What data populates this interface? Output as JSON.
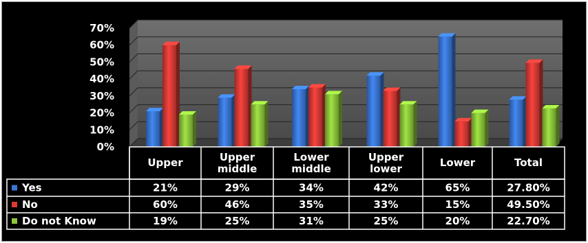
{
  "chart_data": {
    "type": "bar",
    "title": "",
    "xlabel": "",
    "ylabel": "",
    "ylim": [
      0,
      70
    ],
    "yticks": [
      "0%",
      "10%",
      "20%",
      "30%",
      "40%",
      "50%",
      "60%",
      "70%"
    ],
    "grid": true,
    "legend": "data-table-left",
    "categories": [
      [
        "Upper"
      ],
      [
        "Upper",
        "middle"
      ],
      [
        "Lower",
        "middle"
      ],
      [
        "Upper",
        "lower"
      ],
      [
        "Lower"
      ],
      [
        "Total"
      ]
    ],
    "series": [
      {
        "name": "Yes",
        "color": "#3a76d4",
        "values": [
          21,
          29,
          34,
          42,
          65,
          27.8
        ],
        "labels": [
          "21%",
          "29%",
          "34%",
          "42%",
          "65%",
          "27.80%"
        ]
      },
      {
        "name": "No",
        "color": "#d93a35",
        "values": [
          60,
          46,
          35,
          33,
          15,
          49.5
        ],
        "labels": [
          "60%",
          "46%",
          "35%",
          "33%",
          "15%",
          "49.50%"
        ]
      },
      {
        "name": "Do not Know",
        "color": "#8cc63a",
        "values": [
          19,
          25,
          31,
          25,
          20,
          22.7
        ],
        "labels": [
          "19%",
          "25%",
          "31%",
          "25%",
          "20%",
          "22.70%"
        ]
      }
    ]
  }
}
